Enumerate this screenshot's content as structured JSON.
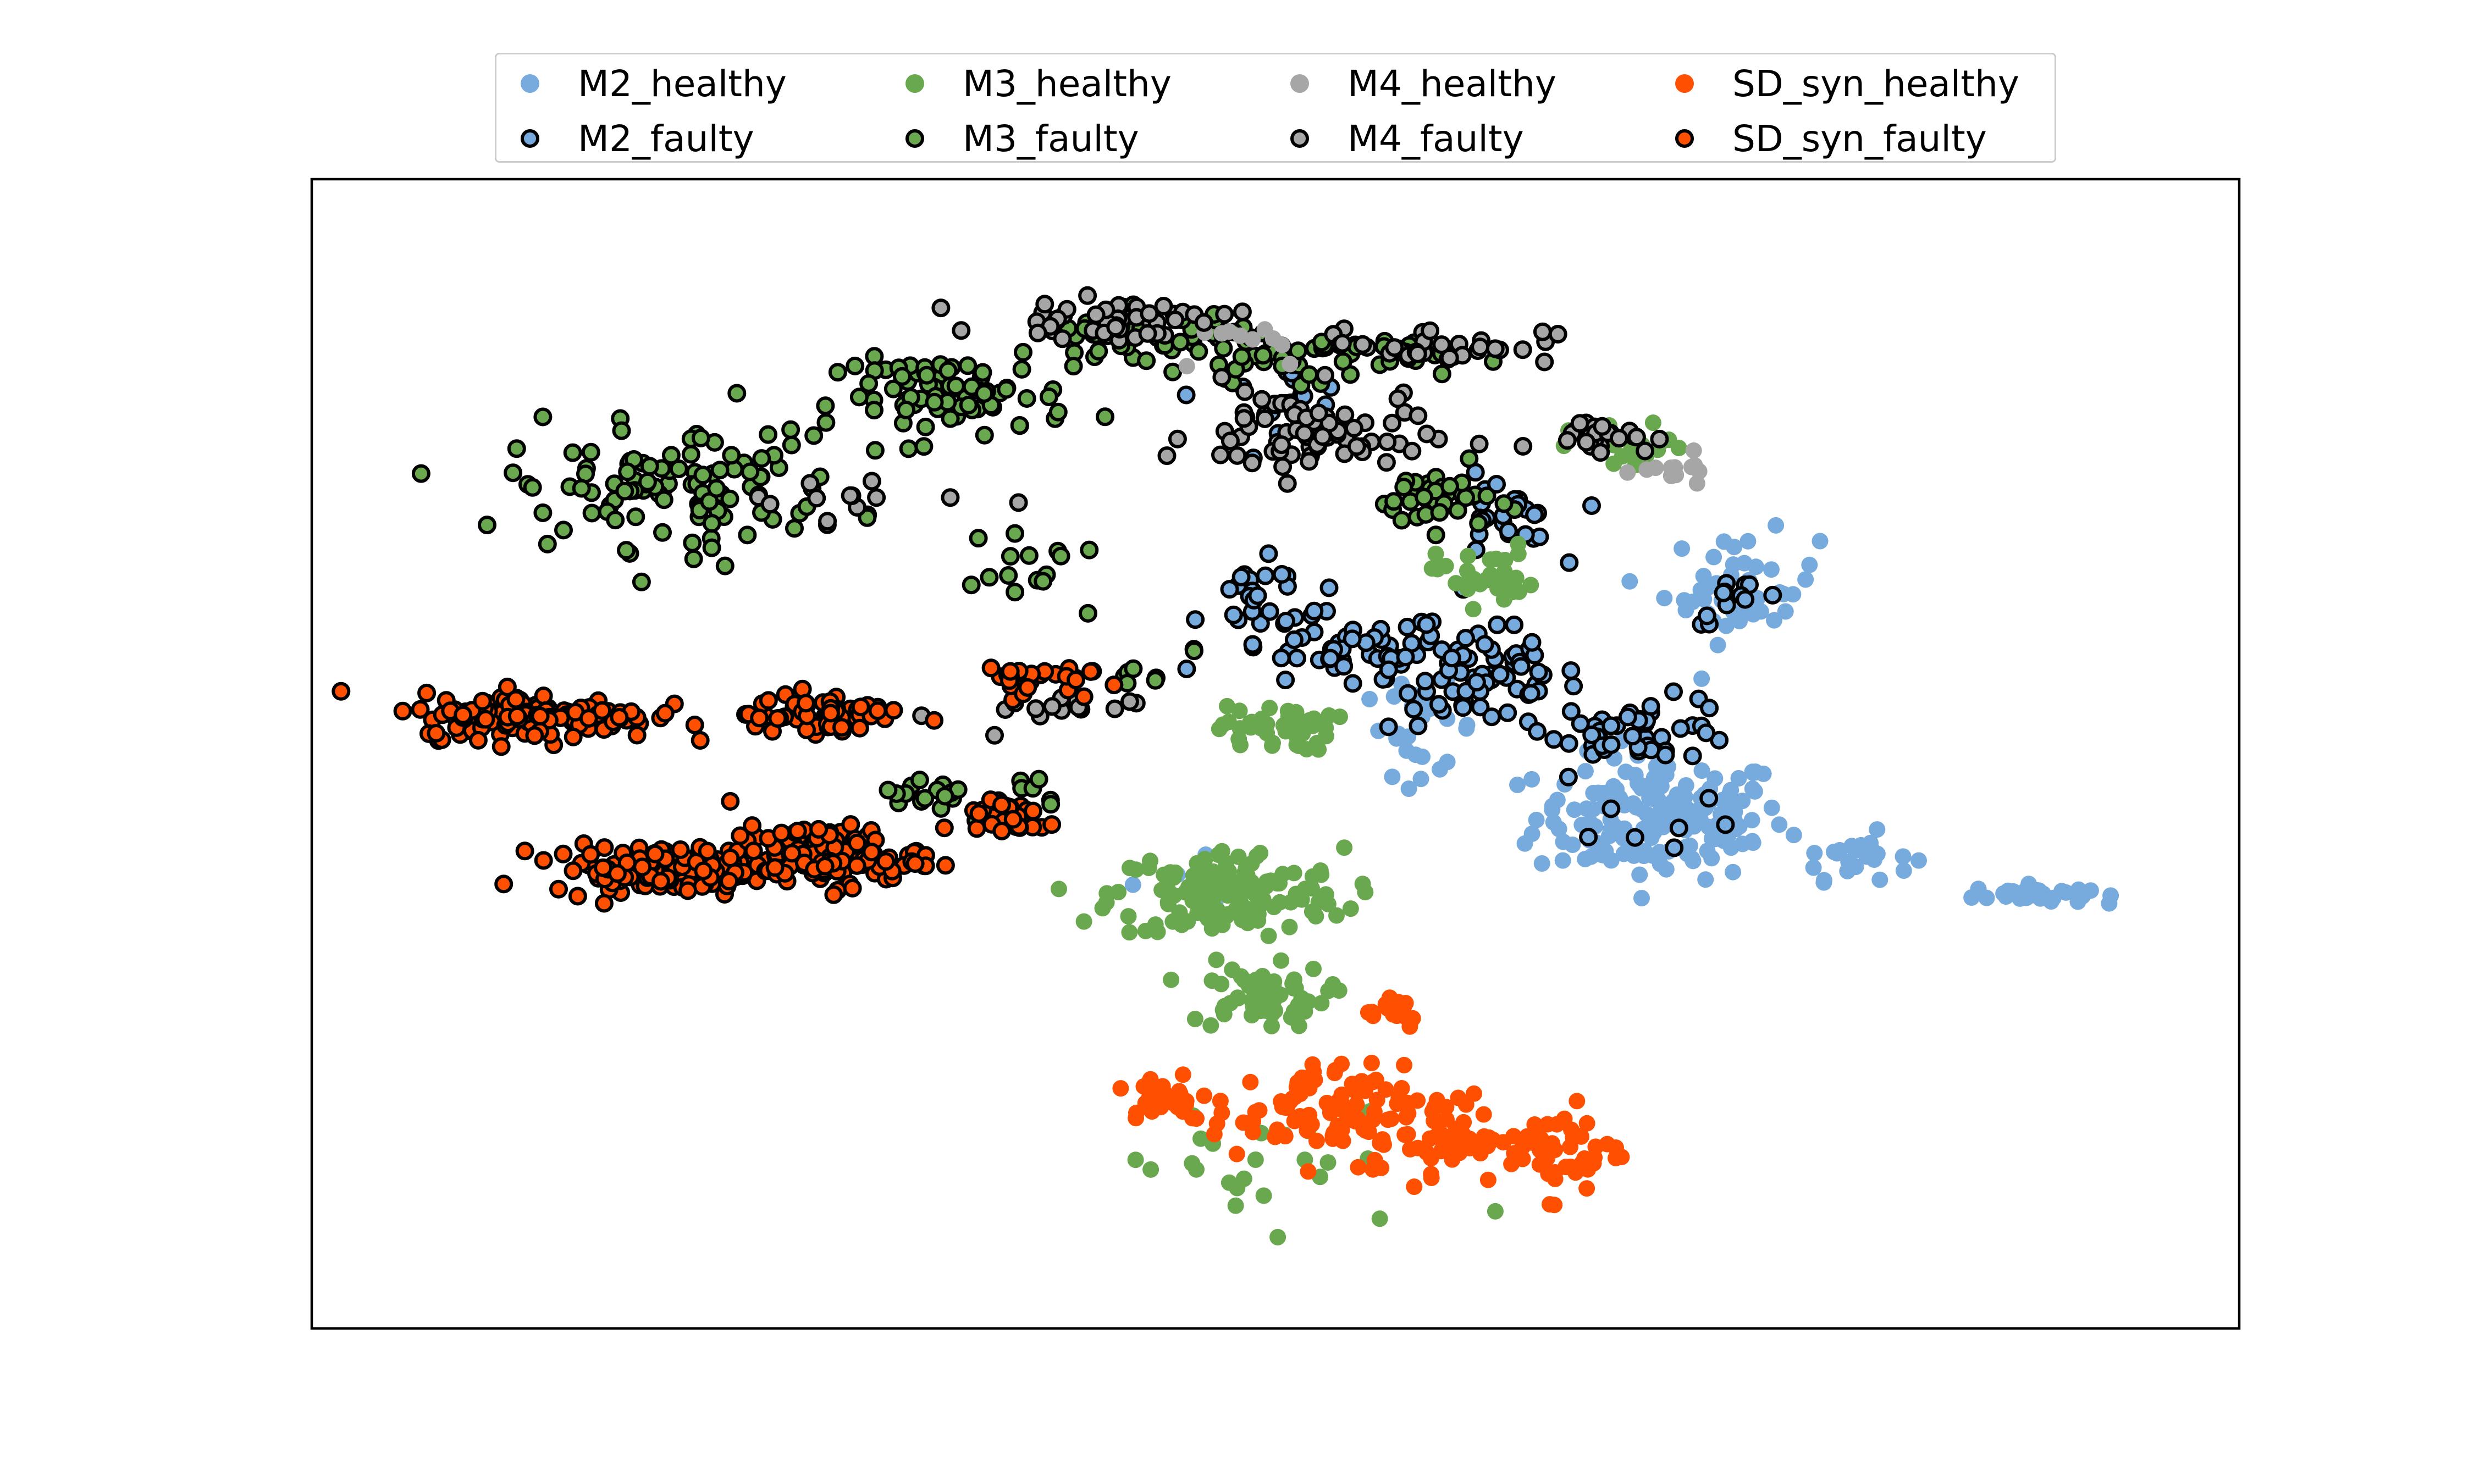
{
  "chart_data": {
    "type": "scatter",
    "title": "",
    "xlabel": "",
    "ylabel": "",
    "xlim": [
      -60,
      60
    ],
    "ylim": [
      -45,
      45
    ],
    "grid": false,
    "ticks_visible": false,
    "legend": {
      "placement": "upper center, above axes",
      "columns": 4,
      "entries": [
        "M2_healthy",
        "M2_faulty",
        "M3_healthy",
        "M3_faulty",
        "M4_healthy",
        "M4_faulty",
        "SD_syn_healthy",
        "SD_syn_faulty"
      ]
    },
    "series": [
      {
        "name": "M2_healthy",
        "color": "#77AADD",
        "edge": "none",
        "clusters": [
          {
            "center": [
              24,
              -5
            ],
            "spread": [
              6.5,
              4
            ],
            "n": 170
          },
          {
            "center": [
              36,
              -8
            ],
            "spread": [
              3,
              1.5
            ],
            "n": 25
          },
          {
            "center": [
              47,
              -11
            ],
            "spread": [
              3,
              0.6
            ],
            "n": 35
          },
          {
            "center": [
              29,
              13
            ],
            "spread": [
              4,
              3.5
            ],
            "n": 45
          },
          {
            "center": [
              9,
              2
            ],
            "spread": [
              3,
              3
            ],
            "n": 25
          },
          {
            "center": [
              -5,
              -10
            ],
            "spread": [
              4,
              1.5
            ],
            "n": 10
          }
        ]
      },
      {
        "name": "M2_faulty",
        "color": "#77AADD",
        "edge": "#000000",
        "clusters": [
          {
            "center": [
              13,
              6
            ],
            "spread": [
              5,
              3.5
            ],
            "n": 70
          },
          {
            "center": [
              4,
              8
            ],
            "spread": [
              6,
              2.5
            ],
            "n": 50
          },
          {
            "center": [
              -1,
              12
            ],
            "spread": [
              3,
              2.5
            ],
            "n": 22
          },
          {
            "center": [
              23,
              2
            ],
            "spread": [
              5,
              2
            ],
            "n": 45
          },
          {
            "center": [
              29,
              12
            ],
            "spread": [
              2.5,
              1.5
            ],
            "n": 12
          },
          {
            "center": [
              0,
              28
            ],
            "spread": [
              4,
              2
            ],
            "n": 20
          },
          {
            "center": [
              14,
              18
            ],
            "spread": [
              3,
              3
            ],
            "n": 25
          },
          {
            "center": [
              23,
              -4
            ],
            "spread": [
              5,
              2.5
            ],
            "n": 8
          }
        ]
      },
      {
        "name": "M3_healthy",
        "color": "#6AA84F",
        "edge": "none",
        "clusters": [
          {
            "center": [
              -3,
              -11
            ],
            "spread": [
              6,
              3
            ],
            "n": 150
          },
          {
            "center": [
              -1,
              -19
            ],
            "spread": [
              3.5,
              2
            ],
            "n": 60
          },
          {
            "center": [
              0,
              2
            ],
            "spread": [
              3,
              1.5
            ],
            "n": 45
          },
          {
            "center": [
              13,
              14
            ],
            "spread": [
              2.5,
              2
            ],
            "n": 35
          },
          {
            "center": [
              22,
              24
            ],
            "spread": [
              3,
              1.5
            ],
            "n": 25
          },
          {
            "center": [
              0,
              -33
            ],
            "spread": [
              10,
              5
            ],
            "n": 25
          }
        ]
      },
      {
        "name": "M3_faulty",
        "color": "#6AA84F",
        "edge": "#000000",
        "clusters": [
          {
            "center": [
              -37,
              21
            ],
            "spread": [
              9,
              4
            ],
            "n": 110
          },
          {
            "center": [
              -20,
              28
            ],
            "spread": [
              6,
              2.5
            ],
            "n": 75
          },
          {
            "center": [
              -8,
              33
            ],
            "spread": [
              6,
              1.5
            ],
            "n": 55
          },
          {
            "center": [
              2,
              31
            ],
            "spread": [
              7,
              1.5
            ],
            "n": 55
          },
          {
            "center": [
              10,
              20
            ],
            "spread": [
              3,
              2
            ],
            "n": 35
          },
          {
            "center": [
              -20,
              -3
            ],
            "spread": [
              6,
              1.5
            ],
            "n": 25
          },
          {
            "center": [
              -15,
              14
            ],
            "spread": [
              5,
              2
            ],
            "n": 15
          },
          {
            "center": [
              -8,
              6
            ],
            "spread": [
              3,
              1.5
            ],
            "n": 10
          }
        ]
      },
      {
        "name": "M4_healthy",
        "color": "#A6A6A6",
        "edge": "none",
        "clusters": [
          {
            "center": [
              25,
              22
            ],
            "spread": [
              2,
              1
            ],
            "n": 12
          },
          {
            "center": [
              -2,
              32
            ],
            "spread": [
              5,
              2
            ],
            "n": 10
          }
        ]
      },
      {
        "name": "M4_faulty",
        "color": "#A6A6A6",
        "edge": "#000000",
        "clusters": [
          {
            "center": [
              2,
              25
            ],
            "spread": [
              6,
              3
            ],
            "n": 75
          },
          {
            "center": [
              -10,
              34
            ],
            "spread": [
              6,
              1.2
            ],
            "n": 45
          },
          {
            "center": [
              10,
              32
            ],
            "spread": [
              6,
              1.2
            ],
            "n": 35
          },
          {
            "center": [
              20,
              25
            ],
            "spread": [
              3,
              1
            ],
            "n": 25
          },
          {
            "center": [
              -15,
              3
            ],
            "spread": [
              5,
              1.5
            ],
            "n": 15
          },
          {
            "center": [
              -28,
              20
            ],
            "spread": [
              7,
              2
            ],
            "n": 12
          }
        ]
      },
      {
        "name": "SD_syn_healthy",
        "color": "#FF4F00",
        "edge": "none",
        "clusters": [
          {
            "center": [
              2,
              -28
            ],
            "spread": [
              5,
              3
            ],
            "n": 80
          },
          {
            "center": [
              10,
              -30
            ],
            "spread": [
              4,
              3
            ],
            "n": 60
          },
          {
            "center": [
              18,
              -31
            ],
            "spread": [
              3,
              3
            ],
            "n": 50
          },
          {
            "center": [
              7,
              -20
            ],
            "spread": [
              2,
              1.2
            ],
            "n": 20
          },
          {
            "center": [
              -7,
              -27
            ],
            "spread": [
              2.5,
              1.5
            ],
            "n": 25
          }
        ]
      },
      {
        "name": "SD_syn_faulty",
        "color": "#FF4F00",
        "edge": "#000000",
        "clusters": [
          {
            "center": [
              -46,
              3
            ],
            "spread": [
              6,
              1.5
            ],
            "n": 140
          },
          {
            "center": [
              -38,
              -9
            ],
            "spread": [
              6,
              1.5
            ],
            "n": 130
          },
          {
            "center": [
              -28,
              -8
            ],
            "spread": [
              5,
              2
            ],
            "n": 110
          },
          {
            "center": [
              -28,
              3
            ],
            "spread": [
              4,
              1.5
            ],
            "n": 55
          },
          {
            "center": [
              -16,
              6
            ],
            "spread": [
              3,
              1
            ],
            "n": 25
          },
          {
            "center": [
              -17,
              -5
            ],
            "spread": [
              3,
              1.5
            ],
            "n": 25
          }
        ]
      }
    ]
  }
}
